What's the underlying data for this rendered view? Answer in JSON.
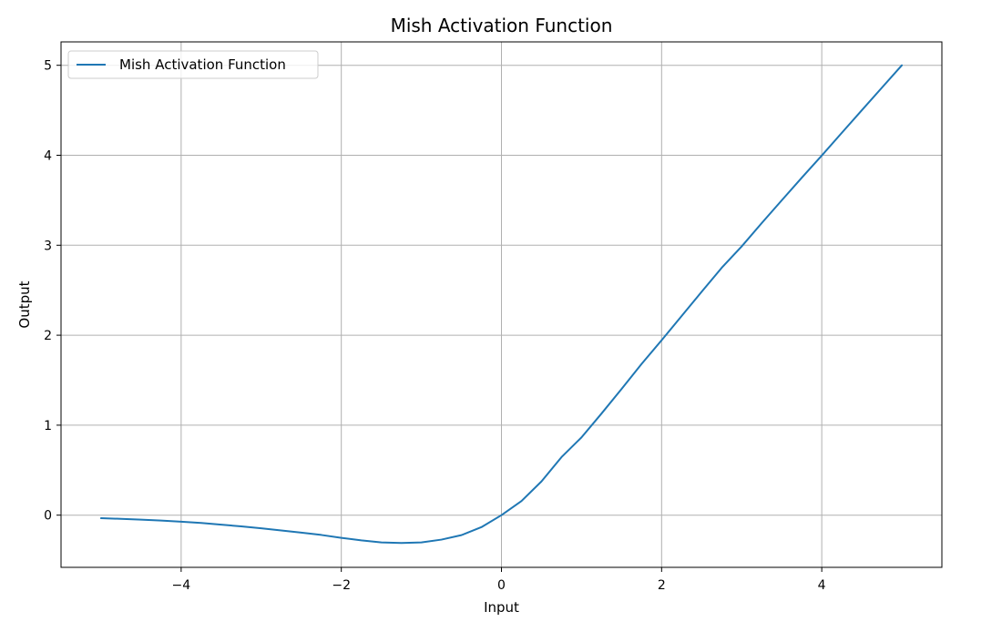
{
  "chart_data": {
    "type": "line",
    "title": "Mish Activation Function",
    "xlabel": "Input",
    "ylabel": "Output",
    "xlim": [
      -5.5,
      5.5
    ],
    "ylim": [
      -0.58,
      5.26
    ],
    "xticks": [
      -4,
      -2,
      0,
      2,
      4
    ],
    "yticks": [
      0,
      1,
      2,
      3,
      4,
      5
    ],
    "xtick_labels": [
      "−4",
      "−2",
      "0",
      "2",
      "4"
    ],
    "ytick_labels": [
      "0",
      "1",
      "2",
      "3",
      "4",
      "5"
    ],
    "grid": true,
    "legend_position": "upper-left",
    "series": [
      {
        "name": "Mish Activation Function",
        "color": "#1f77b4",
        "x": [
          -5.0,
          -4.75,
          -4.5,
          -4.25,
          -4.0,
          -3.75,
          -3.5,
          -3.25,
          -3.0,
          -2.75,
          -2.5,
          -2.25,
          -2.0,
          -1.75,
          -1.5,
          -1.25,
          -1.0,
          -0.75,
          -0.5,
          -0.25,
          0.0,
          0.25,
          0.5,
          0.75,
          1.0,
          1.25,
          1.5,
          1.75,
          2.0,
          2.25,
          2.5,
          2.75,
          3.0,
          3.25,
          3.5,
          3.75,
          4.0,
          4.25,
          4.5,
          4.75,
          5.0
        ],
        "y": [
          -0.034,
          -0.041,
          -0.05,
          -0.06,
          -0.073,
          -0.087,
          -0.105,
          -0.125,
          -0.146,
          -0.17,
          -0.194,
          -0.22,
          -0.252,
          -0.28,
          -0.303,
          -0.309,
          -0.303,
          -0.272,
          -0.222,
          -0.133,
          0.0,
          0.157,
          0.375,
          0.645,
          0.865,
          1.13,
          1.403,
          1.681,
          1.944,
          2.213,
          2.483,
          2.749,
          2.987,
          3.246,
          3.499,
          3.75,
          3.997,
          4.249,
          4.5,
          4.75,
          5.0
        ]
      }
    ]
  }
}
